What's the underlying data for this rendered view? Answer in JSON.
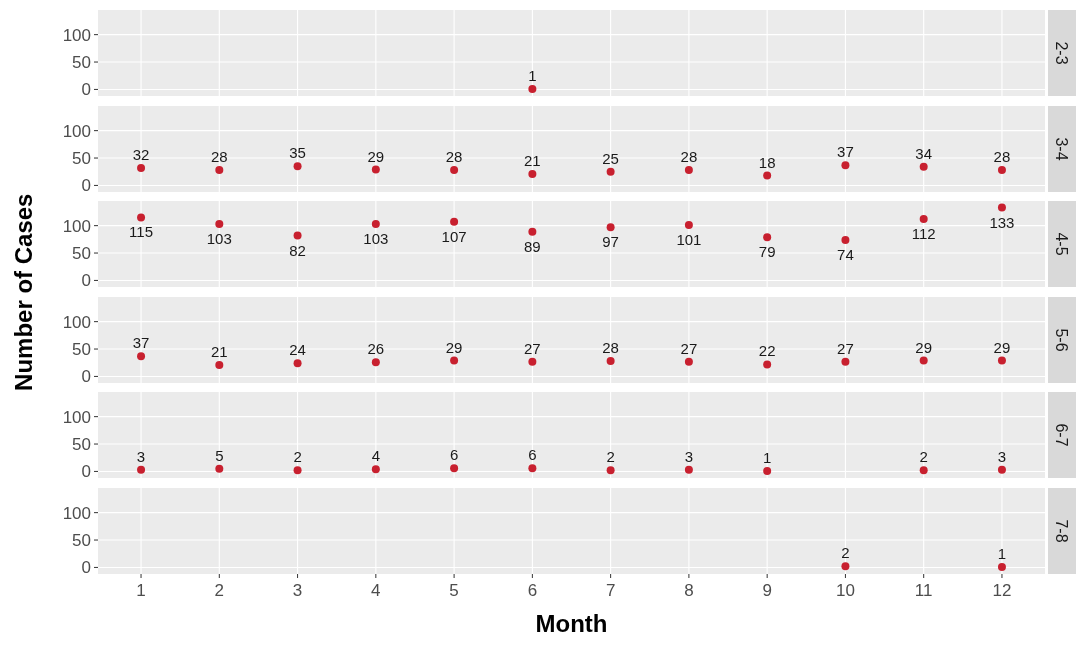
{
  "chart_data": [
    {
      "type": "scatter",
      "annotations": [
        "2-3"
      ],
      "x": [
        6
      ],
      "values": [
        1
      ],
      "color": "#c8202f",
      "xlim": [
        0.45,
        12.55
      ],
      "xticks": [
        1,
        2,
        3,
        4,
        5,
        6,
        7,
        8,
        9,
        10,
        11,
        12
      ],
      "ylim": [
        -12,
        145
      ],
      "yticks": [
        0,
        50,
        100
      ],
      "grid": true,
      "tick_labels": "y",
      "data_labels": true,
      "marker": "circle"
    },
    {
      "type": "scatter",
      "annotations": [
        "3-4"
      ],
      "x": [
        1,
        2,
        3,
        4,
        5,
        6,
        7,
        8,
        9,
        10,
        11,
        12
      ],
      "values": [
        32,
        28,
        35,
        29,
        28,
        21,
        25,
        28,
        18,
        37,
        34,
        28
      ],
      "color": "#c8202f",
      "xlim": [
        0.45,
        12.55
      ],
      "xticks": [
        1,
        2,
        3,
        4,
        5,
        6,
        7,
        8,
        9,
        10,
        11,
        12
      ],
      "ylim": [
        -12,
        145
      ],
      "yticks": [
        0,
        50,
        100
      ],
      "grid": true,
      "tick_labels": "y",
      "data_labels": true,
      "marker": "circle"
    },
    {
      "type": "scatter",
      "annotations": [
        "4-5"
      ],
      "x": [
        1,
        2,
        3,
        4,
        5,
        6,
        7,
        8,
        9,
        10,
        11,
        12
      ],
      "values": [
        115,
        103,
        82,
        103,
        107,
        89,
        97,
        101,
        79,
        74,
        112,
        133
      ],
      "color": "#c8202f",
      "xlim": [
        0.45,
        12.55
      ],
      "xticks": [
        1,
        2,
        3,
        4,
        5,
        6,
        7,
        8,
        9,
        10,
        11,
        12
      ],
      "ylim": [
        -12,
        145
      ],
      "yticks": [
        0,
        50,
        100
      ],
      "grid": true,
      "tick_labels": "y",
      "data_labels": true,
      "marker": "circle"
    },
    {
      "type": "scatter",
      "annotations": [
        "5-6"
      ],
      "ylabel": "Number of Cases",
      "x": [
        1,
        2,
        3,
        4,
        5,
        6,
        7,
        8,
        9,
        10,
        11,
        12
      ],
      "values": [
        37,
        21,
        24,
        26,
        29,
        27,
        28,
        27,
        22,
        27,
        29,
        29
      ],
      "color": "#c8202f",
      "xlim": [
        0.45,
        12.55
      ],
      "xticks": [
        1,
        2,
        3,
        4,
        5,
        6,
        7,
        8,
        9,
        10,
        11,
        12
      ],
      "ylim": [
        -12,
        145
      ],
      "yticks": [
        0,
        50,
        100
      ],
      "grid": true,
      "tick_labels": "y",
      "data_labels": true,
      "marker": "circle"
    },
    {
      "type": "scatter",
      "annotations": [
        "6-7"
      ],
      "x": [
        1,
        2,
        3,
        4,
        5,
        6,
        7,
        8,
        9,
        11,
        12
      ],
      "values": [
        3,
        5,
        2,
        4,
        6,
        6,
        2,
        3,
        1,
        2,
        3
      ],
      "color": "#c8202f",
      "xlim": [
        0.45,
        12.55
      ],
      "xticks": [
        1,
        2,
        3,
        4,
        5,
        6,
        7,
        8,
        9,
        10,
        11,
        12
      ],
      "ylim": [
        -12,
        145
      ],
      "yticks": [
        0,
        50,
        100
      ],
      "grid": true,
      "tick_labels": "y",
      "data_labels": true,
      "marker": "circle"
    },
    {
      "type": "scatter",
      "annotations": [
        "7-8"
      ],
      "xlabel": "Month",
      "x": [
        10,
        12
      ],
      "values": [
        2,
        1
      ],
      "color": "#c8202f",
      "xlim": [
        0.45,
        12.55
      ],
      "xticks": [
        1,
        2,
        3,
        4,
        5,
        6,
        7,
        8,
        9,
        10,
        11,
        12
      ],
      "ylim": [
        -12,
        145
      ],
      "yticks": [
        0,
        50,
        100
      ],
      "grid": true,
      "data_labels": true,
      "marker": "circle"
    }
  ]
}
